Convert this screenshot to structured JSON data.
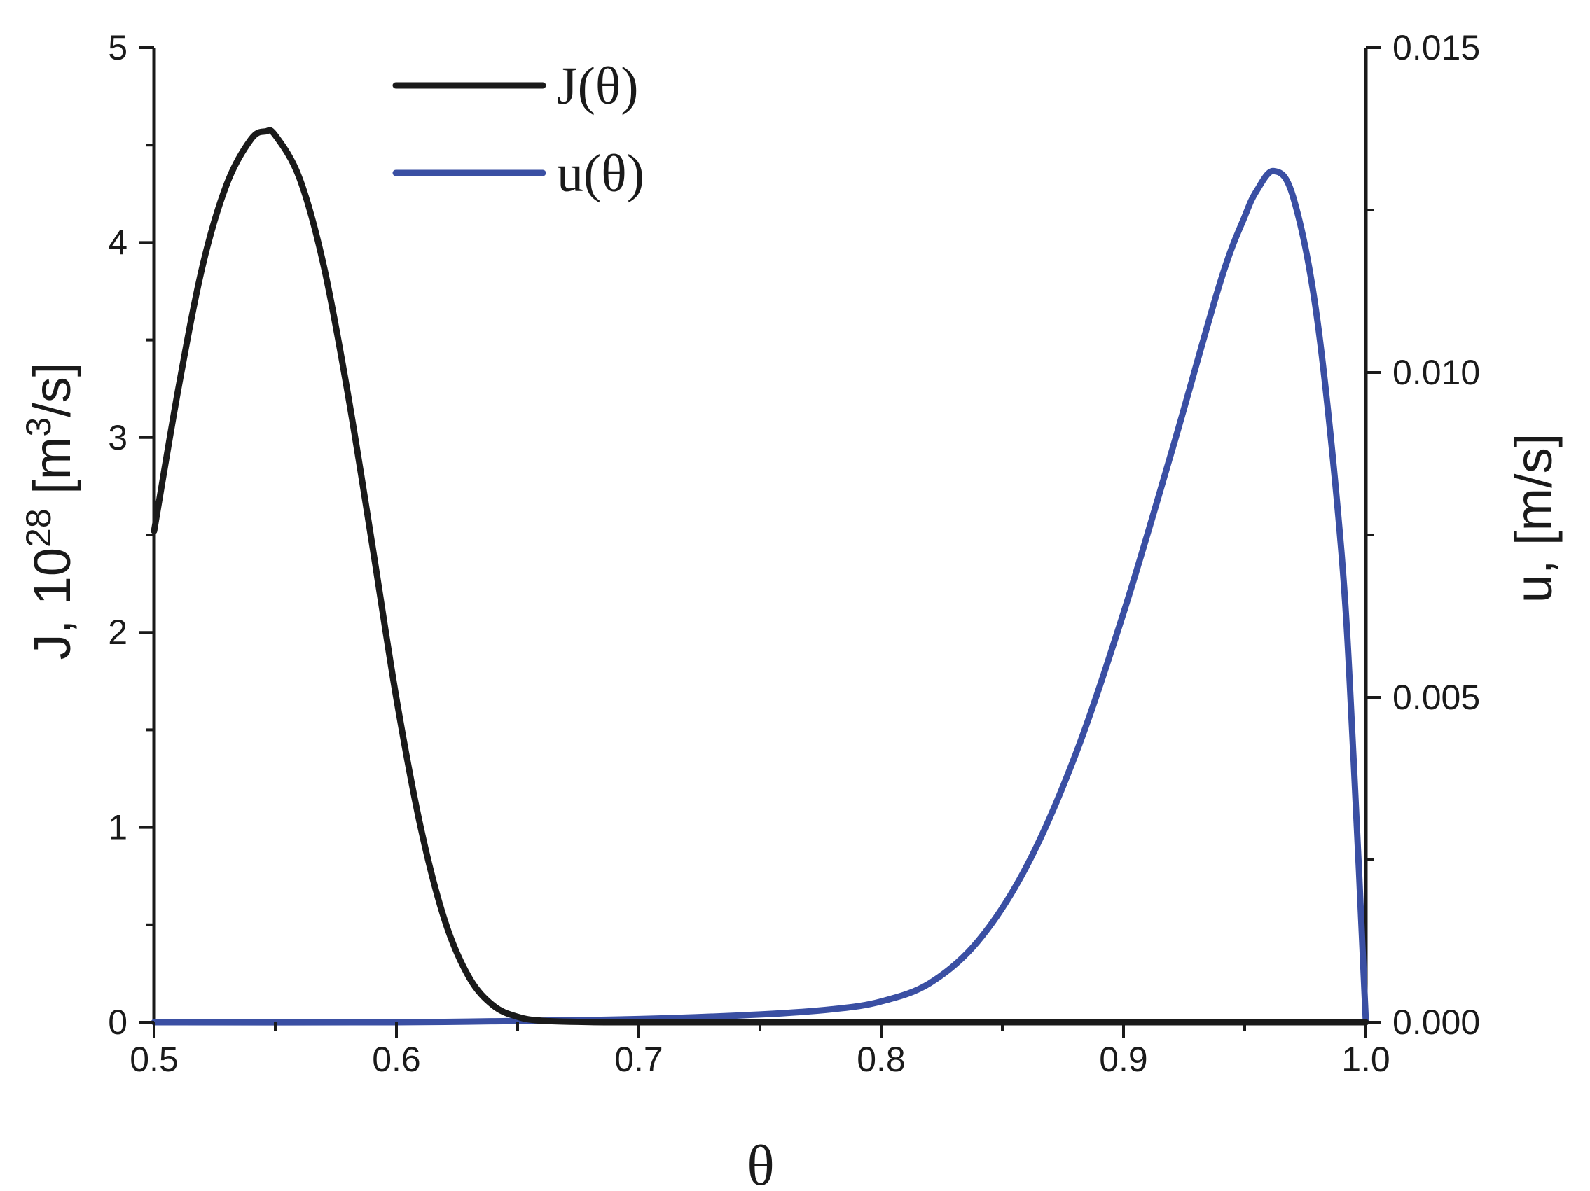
{
  "chart_data": {
    "type": "line",
    "xlabel": "θ",
    "ylabel_left": {
      "main": "J, 10",
      "exp": "28",
      "unit_open": " [m",
      "unit_exp": "3",
      "unit_close": "/s]"
    },
    "ylabel_right": "u, [m/s]",
    "xlim": [
      0.5,
      1.0
    ],
    "ylim_left": [
      0,
      5
    ],
    "ylim_right": [
      0,
      0.015
    ],
    "x_ticks": [
      "0.5",
      "0.6",
      "0.7",
      "0.8",
      "0.9",
      "1.0"
    ],
    "y_left_ticks": [
      "0",
      "1",
      "2",
      "3",
      "4",
      "5"
    ],
    "y_right_ticks": [
      "0.000",
      "0.005",
      "0.010",
      "0.015"
    ],
    "legend_position": "top-left",
    "grid": false,
    "series": [
      {
        "name": "J(θ)",
        "axis": "left",
        "color": "#1a1a1a",
        "x": [
          0.5,
          0.51,
          0.52,
          0.53,
          0.54,
          0.546,
          0.55,
          0.56,
          0.57,
          0.58,
          0.59,
          0.6,
          0.61,
          0.62,
          0.63,
          0.64,
          0.65,
          0.66,
          0.68,
          0.7,
          0.75,
          0.8,
          0.85,
          0.9,
          0.95,
          1.0
        ],
        "y": [
          2.52,
          3.25,
          3.88,
          4.3,
          4.53,
          4.57,
          4.55,
          4.33,
          3.88,
          3.22,
          2.45,
          1.66,
          1.0,
          0.52,
          0.23,
          0.085,
          0.028,
          0.008,
          0.001,
          0.0,
          0.0,
          0.0,
          0.0,
          0.0,
          0.0,
          0.0
        ]
      },
      {
        "name": "u(θ)",
        "axis": "right",
        "color": "#3a4fa3",
        "x": [
          0.5,
          0.6,
          0.65,
          0.7,
          0.75,
          0.78,
          0.8,
          0.82,
          0.84,
          0.86,
          0.88,
          0.9,
          0.92,
          0.94,
          0.95,
          0.955,
          0.962,
          0.97,
          0.98,
          0.99,
          0.995,
          1.0
        ],
        "y": [
          0.0,
          0.0,
          2e-05,
          5e-05,
          0.00012,
          0.0002,
          0.00032,
          0.0006,
          0.00125,
          0.0024,
          0.0041,
          0.0063,
          0.0088,
          0.0114,
          0.0124,
          0.0128,
          0.0131,
          0.0127,
          0.0108,
          0.0072,
          0.004,
          0.0
        ]
      }
    ]
  }
}
